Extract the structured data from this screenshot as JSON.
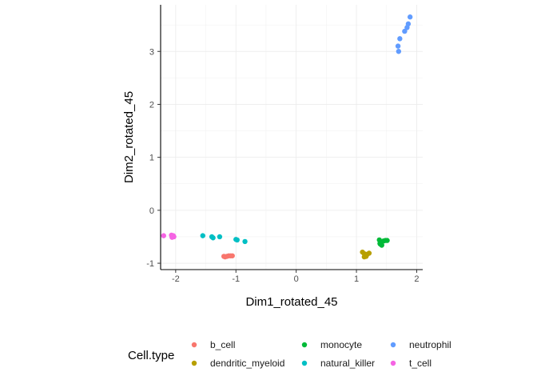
{
  "chart_data": {
    "type": "scatter",
    "xlabel": "Dim1_rotated_45",
    "ylabel": "Dim2_rotated_45",
    "xlim": [
      -2.25,
      2.1
    ],
    "ylim": [
      -1.12,
      3.88
    ],
    "x_ticks": [
      -2,
      -1,
      0,
      1,
      2
    ],
    "y_ticks": [
      -1,
      0,
      1,
      2,
      3
    ],
    "x_tick_labels": [
      "-2",
      "-1",
      "0",
      "1",
      "2"
    ],
    "y_tick_labels": [
      "-1",
      "0",
      "1",
      "2",
      "3"
    ],
    "grid": true,
    "legend": {
      "title": "Cell.type",
      "position": "bottom",
      "entries": [
        "b_cell",
        "dendritic_myeloid",
        "monocyte",
        "natural_killer",
        "neutrophil",
        "t_cell"
      ]
    },
    "series": [
      {
        "name": "b_cell",
        "color": "#F8766D",
        "points": [
          [
            -1.18,
            -0.88
          ],
          [
            -1.15,
            -0.87
          ],
          [
            -1.12,
            -0.86
          ],
          [
            -1.09,
            -0.86
          ],
          [
            -1.06,
            -0.86
          ],
          [
            -1.2,
            -0.87
          ]
        ]
      },
      {
        "name": "dendritic_myeloid",
        "color": "#B79F00",
        "points": [
          [
            1.1,
            -0.79
          ],
          [
            1.13,
            -0.82
          ],
          [
            1.15,
            -0.85
          ],
          [
            1.13,
            -0.88
          ],
          [
            1.18,
            -0.83
          ],
          [
            1.21,
            -0.81
          ],
          [
            1.16,
            -0.87
          ]
        ]
      },
      {
        "name": "monocyte",
        "color": "#00BA38",
        "points": [
          [
            1.38,
            -0.56
          ],
          [
            1.39,
            -0.63
          ],
          [
            1.42,
            -0.66
          ],
          [
            1.45,
            -0.58
          ],
          [
            1.48,
            -0.57
          ],
          [
            1.51,
            -0.57
          ],
          [
            1.4,
            -0.64
          ]
        ]
      },
      {
        "name": "natural_killer",
        "color": "#00BFC4",
        "points": [
          [
            -1.55,
            -0.48
          ],
          [
            -1.4,
            -0.5
          ],
          [
            -1.38,
            -0.52
          ],
          [
            -1.27,
            -0.5
          ],
          [
            -1.0,
            -0.55
          ],
          [
            -0.98,
            -0.56
          ],
          [
            -0.85,
            -0.59
          ]
        ]
      },
      {
        "name": "neutrophil",
        "color": "#619CFF",
        "points": [
          [
            1.69,
            3.1
          ],
          [
            1.7,
            3.0
          ],
          [
            1.72,
            3.24
          ],
          [
            1.8,
            3.38
          ],
          [
            1.84,
            3.45
          ],
          [
            1.86,
            3.52
          ],
          [
            1.89,
            3.65
          ]
        ]
      },
      {
        "name": "t_cell",
        "color": "#F564E3",
        "points": [
          [
            -2.2,
            -0.48
          ],
          [
            -2.07,
            -0.47
          ],
          [
            -2.05,
            -0.49
          ],
          [
            -2.03,
            -0.5
          ],
          [
            -2.06,
            -0.51
          ],
          [
            -2.04,
            -0.48
          ]
        ]
      }
    ]
  }
}
